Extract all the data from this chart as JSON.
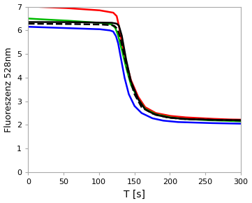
{
  "title": "",
  "xlabel": "T [s]",
  "ylabel": "Fluoreszenz 528nm",
  "xlim": [
    0,
    300
  ],
  "ylim": [
    0,
    7
  ],
  "xticks": [
    0,
    50,
    100,
    150,
    200,
    250,
    300
  ],
  "yticks": [
    0,
    1,
    2,
    3,
    4,
    5,
    6,
    7
  ],
  "lines": [
    {
      "color": "#ff0000",
      "lw": 1.8,
      "linestyle": "solid",
      "points": [
        [
          0,
          7.0
        ],
        [
          10,
          7.0
        ],
        [
          50,
          6.95
        ],
        [
          100,
          6.85
        ],
        [
          120,
          6.75
        ],
        [
          125,
          6.6
        ],
        [
          128,
          6.2
        ],
        [
          132,
          5.5
        ],
        [
          138,
          4.7
        ],
        [
          145,
          3.9
        ],
        [
          155,
          3.2
        ],
        [
          165,
          2.75
        ],
        [
          180,
          2.5
        ],
        [
          200,
          2.38
        ],
        [
          220,
          2.32
        ],
        [
          250,
          2.27
        ],
        [
          280,
          2.23
        ],
        [
          300,
          2.22
        ]
      ]
    },
    {
      "color": "#00bb00",
      "lw": 1.8,
      "linestyle": "solid",
      "points": [
        [
          0,
          6.5
        ],
        [
          10,
          6.48
        ],
        [
          50,
          6.42
        ],
        [
          100,
          6.32
        ],
        [
          118,
          6.25
        ],
        [
          123,
          6.1
        ],
        [
          127,
          5.78
        ],
        [
          132,
          5.2
        ],
        [
          138,
          4.45
        ],
        [
          145,
          3.7
        ],
        [
          155,
          3.1
        ],
        [
          165,
          2.68
        ],
        [
          180,
          2.45
        ],
        [
          200,
          2.32
        ],
        [
          220,
          2.25
        ],
        [
          250,
          2.2
        ],
        [
          280,
          2.17
        ],
        [
          300,
          2.15
        ]
      ]
    },
    {
      "color": "#000000",
      "lw": 1.8,
      "linestyle": "solid",
      "points": [
        [
          0,
          6.35
        ],
        [
          50,
          6.35
        ],
        [
          100,
          6.33
        ],
        [
          118,
          6.32
        ],
        [
          122,
          6.3
        ],
        [
          125,
          6.28
        ],
        [
          128,
          6.2
        ],
        [
          132,
          5.8
        ],
        [
          138,
          4.8
        ],
        [
          145,
          3.85
        ],
        [
          155,
          3.1
        ],
        [
          165,
          2.65
        ],
        [
          180,
          2.42
        ],
        [
          200,
          2.3
        ],
        [
          220,
          2.25
        ],
        [
          250,
          2.22
        ],
        [
          280,
          2.2
        ],
        [
          300,
          2.2
        ]
      ]
    },
    {
      "color": "#000000",
      "lw": 1.8,
      "linestyle": "dashed",
      "points": [
        [
          0,
          6.28
        ],
        [
          50,
          6.27
        ],
        [
          100,
          6.25
        ],
        [
          118,
          6.22
        ],
        [
          122,
          6.18
        ],
        [
          126,
          6.05
        ],
        [
          130,
          5.7
        ],
        [
          135,
          5.0
        ],
        [
          142,
          4.1
        ],
        [
          150,
          3.3
        ],
        [
          160,
          2.75
        ],
        [
          175,
          2.48
        ],
        [
          195,
          2.32
        ],
        [
          215,
          2.25
        ],
        [
          250,
          2.22
        ],
        [
          280,
          2.2
        ],
        [
          300,
          2.18
        ]
      ]
    },
    {
      "color": "#0000ff",
      "lw": 1.8,
      "linestyle": "solid",
      "points": [
        [
          0,
          6.15
        ],
        [
          50,
          6.1
        ],
        [
          100,
          6.05
        ],
        [
          115,
          6.0
        ],
        [
          120,
          5.95
        ],
        [
          124,
          5.75
        ],
        [
          127,
          5.45
        ],
        [
          131,
          4.8
        ],
        [
          136,
          4.0
        ],
        [
          142,
          3.3
        ],
        [
          150,
          2.8
        ],
        [
          160,
          2.5
        ],
        [
          175,
          2.28
        ],
        [
          190,
          2.18
        ],
        [
          210,
          2.12
        ],
        [
          250,
          2.08
        ],
        [
          280,
          2.06
        ],
        [
          300,
          2.05
        ]
      ]
    }
  ],
  "bg_color": "#ffffff",
  "figsize": [
    3.61,
    2.9
  ],
  "dpi": 100
}
